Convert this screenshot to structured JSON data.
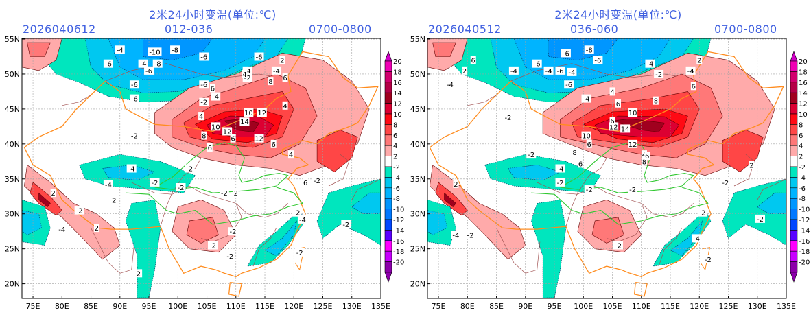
{
  "panels": [
    {
      "title": "2米24小时变温(单位:℃)",
      "init_time": "2026040612",
      "forecast_range": "012-036",
      "valid_hours": "0700-0800",
      "labels": [
        {
          "t": "-10",
          "lon": 96,
          "lat": 53.2
        },
        {
          "t": "-8",
          "lon": 99.5,
          "lat": 53.5
        },
        {
          "t": "-6",
          "lon": 104.5,
          "lat": 52.5
        },
        {
          "t": "-6",
          "lon": 88,
          "lat": 51.5
        },
        {
          "t": "-4",
          "lon": 94,
          "lat": 51.5
        },
        {
          "t": "-8",
          "lon": 96.5,
          "lat": 51.5
        },
        {
          "t": "-6",
          "lon": 95,
          "lat": 50.5
        },
        {
          "t": "-4",
          "lon": 90,
          "lat": 53.5
        },
        {
          "t": "-6",
          "lon": 92.5,
          "lat": 48.5
        },
        {
          "t": "-6",
          "lon": 104.5,
          "lat": 48.5
        },
        {
          "t": "-6",
          "lon": 92.5,
          "lat": 46.5
        },
        {
          "t": "-4",
          "lon": 106.5,
          "lat": 46.8
        },
        {
          "t": "-4",
          "lon": 112,
          "lat": 50.5
        },
        {
          "t": "-6",
          "lon": 114,
          "lat": 52.5
        },
        {
          "t": "-4",
          "lon": 117,
          "lat": 50.5
        },
        {
          "t": "-2",
          "lon": 112,
          "lat": 49.5
        },
        {
          "t": "-2",
          "lon": 104.5,
          "lat": 46
        },
        {
          "t": "6",
          "lon": 106,
          "lat": 48
        },
        {
          "t": "4",
          "lon": 111.5,
          "lat": 50
        },
        {
          "t": "8",
          "lon": 116,
          "lat": 49
        },
        {
          "t": "6",
          "lon": 118.5,
          "lat": 49.5
        },
        {
          "t": "10",
          "lon": 112.2,
          "lat": 44.5
        },
        {
          "t": "12",
          "lon": 114.5,
          "lat": 44.5
        },
        {
          "t": "14",
          "lon": 111.5,
          "lat": 43.2
        },
        {
          "t": "10",
          "lon": 106.5,
          "lat": 42.5
        },
        {
          "t": "12",
          "lon": 108.5,
          "lat": 41.8
        },
        {
          "t": "6",
          "lon": 109.5,
          "lat": 40.8
        },
        {
          "t": "12",
          "lon": 114,
          "lat": 40.8
        },
        {
          "t": "6",
          "lon": 116.5,
          "lat": 40
        },
        {
          "t": "8",
          "lon": 104.5,
          "lat": 41.2
        },
        {
          "t": "6",
          "lon": 105.5,
          "lat": 39.5
        },
        {
          "t": "4",
          "lon": 104,
          "lat": 44
        },
        {
          "t": "4",
          "lon": 118.5,
          "lat": 45.5
        },
        {
          "t": "2",
          "lon": 118,
          "lat": 52
        },
        {
          "t": "4",
          "lon": 119.5,
          "lat": 38.5
        },
        {
          "t": "6",
          "lon": 122,
          "lat": 34.5
        },
        {
          "t": "-2",
          "lon": 92.5,
          "lat": 41.2
        },
        {
          "t": "-4",
          "lon": 92,
          "lat": 36.5
        },
        {
          "t": "-4",
          "lon": 88,
          "lat": 34.2
        },
        {
          "t": "-2",
          "lon": 96,
          "lat": 34.5
        },
        {
          "t": "-2",
          "lon": 100.5,
          "lat": 33.8
        },
        {
          "t": "-2",
          "lon": 102,
          "lat": 36.5
        },
        {
          "t": "-2",
          "lon": 108,
          "lat": 33
        },
        {
          "t": "-2",
          "lon": 109.5,
          "lat": 27.5
        },
        {
          "t": "-2",
          "lon": 106,
          "lat": 25.5
        },
        {
          "t": "-2",
          "lon": 109,
          "lat": 24
        },
        {
          "t": "-4",
          "lon": 80,
          "lat": 27.8
        },
        {
          "t": "-2",
          "lon": 83,
          "lat": 30.5
        },
        {
          "t": "2",
          "lon": 78.5,
          "lat": 33
        },
        {
          "t": "2",
          "lon": 86,
          "lat": 28
        },
        {
          "t": "2",
          "lon": 89,
          "lat": 32
        },
        {
          "t": "-2",
          "lon": 120.5,
          "lat": 30.2
        },
        {
          "t": "-4",
          "lon": 121.5,
          "lat": 29.2
        },
        {
          "t": "-2",
          "lon": 124,
          "lat": 34.8
        },
        {
          "t": "-2",
          "lon": 129,
          "lat": 28.5
        },
        {
          "t": "-2",
          "lon": 121,
          "lat": 24.5
        },
        {
          "t": "2",
          "lon": 110,
          "lat": 33
        },
        {
          "t": "-2",
          "lon": 93,
          "lat": 21.5
        }
      ]
    },
    {
      "title": "2米24小时变温(单位:℃)",
      "init_time": "2026040512",
      "forecast_range": "036-060",
      "valid_hours": "0700-0800",
      "labels": [
        {
          "t": "-6",
          "lon": 97,
          "lat": 53
        },
        {
          "t": "-8",
          "lon": 101,
          "lat": 53.5
        },
        {
          "t": "-6",
          "lon": 102.5,
          "lat": 52
        },
        {
          "t": "-4",
          "lon": 94,
          "lat": 50.5
        },
        {
          "t": "-6",
          "lon": 96,
          "lat": 50.5
        },
        {
          "t": "-4",
          "lon": 98,
          "lat": 50.3
        },
        {
          "t": "-6",
          "lon": 92,
          "lat": 51.5
        },
        {
          "t": "-4",
          "lon": 88,
          "lat": 50.5
        },
        {
          "t": "-6",
          "lon": 97.5,
          "lat": 48.5
        },
        {
          "t": "-4",
          "lon": 100.5,
          "lat": 46.5
        },
        {
          "t": "-4",
          "lon": 111.5,
          "lat": 51.5
        },
        {
          "t": "-4",
          "lon": 118.5,
          "lat": 50.5
        },
        {
          "t": "-2",
          "lon": 113,
          "lat": 50
        },
        {
          "t": "-4",
          "lon": 77,
          "lat": 48.5
        },
        {
          "t": "-2",
          "lon": 87,
          "lat": 43.8
        },
        {
          "t": "6",
          "lon": 81,
          "lat": 52
        },
        {
          "t": "2",
          "lon": 79.5,
          "lat": 50.5
        },
        {
          "t": "4",
          "lon": 105,
          "lat": 47.5
        },
        {
          "t": "6",
          "lon": 106,
          "lat": 45.8
        },
        {
          "t": "8",
          "lon": 112.5,
          "lat": 46.2
        },
        {
          "t": "6",
          "lon": 119,
          "lat": 48.3
        },
        {
          "t": "10",
          "lon": 108.5,
          "lat": 44.5
        },
        {
          "t": "12",
          "lon": 105.2,
          "lat": 42.5
        },
        {
          "t": "14",
          "lon": 107.2,
          "lat": 42.2
        },
        {
          "t": "10",
          "lon": 100.5,
          "lat": 41.2
        },
        {
          "t": "6",
          "lon": 101,
          "lat": 40
        },
        {
          "t": "8",
          "lon": 98.5,
          "lat": 38.8
        },
        {
          "t": "12",
          "lon": 108.5,
          "lat": 40
        },
        {
          "t": "8",
          "lon": 110.5,
          "lat": 37.5
        },
        {
          "t": "6",
          "lon": 99.5,
          "lat": 37.2
        },
        {
          "t": "4",
          "lon": 110.5,
          "lat": 38.5
        },
        {
          "t": "6",
          "lon": 111,
          "lat": 38.3
        },
        {
          "t": "6",
          "lon": 105,
          "lat": 43.3
        },
        {
          "t": "-2",
          "lon": 91,
          "lat": 38.5
        },
        {
          "t": "-4",
          "lon": 96,
          "lat": 36.5
        },
        {
          "t": "-2",
          "lon": 96,
          "lat": 34.5
        },
        {
          "t": "-2",
          "lon": 101,
          "lat": 33.5
        },
        {
          "t": "-2",
          "lon": 108.5,
          "lat": 33.5
        },
        {
          "t": "-2",
          "lon": 106,
          "lat": 25.5
        },
        {
          "t": "-4",
          "lon": 78,
          "lat": 27
        },
        {
          "t": "-2",
          "lon": 80.5,
          "lat": 27
        },
        {
          "t": "2",
          "lon": 78,
          "lat": 34.3
        },
        {
          "t": "-2",
          "lon": 120.5,
          "lat": 30.2
        },
        {
          "t": "-4",
          "lon": 119.5,
          "lat": 26.5
        },
        {
          "t": "-2",
          "lon": 124.5,
          "lat": 34.5
        },
        {
          "t": "-2",
          "lon": 130.5,
          "lat": 29.3
        },
        {
          "t": "-2",
          "lon": 121.5,
          "lat": 23.5
        },
        {
          "t": "2",
          "lon": 129,
          "lat": 37
        },
        {
          "t": "2",
          "lon": 120,
          "lat": 52
        }
      ]
    }
  ],
  "axes": {
    "lon_ticks": [
      "75E",
      "80E",
      "85E",
      "90E",
      "95E",
      "100E",
      "105E",
      "110E",
      "115E",
      "120E",
      "125E",
      "130E",
      "135E"
    ],
    "lon_values": [
      75,
      80,
      85,
      90,
      95,
      100,
      105,
      110,
      115,
      120,
      125,
      130,
      135
    ],
    "lat_ticks": [
      "55N",
      "50N",
      "45N",
      "40N",
      "35N",
      "30N",
      "25N",
      "20N"
    ],
    "lat_values": [
      55,
      50,
      45,
      40,
      35,
      30,
      25,
      20
    ]
  },
  "colorbar": {
    "labels": [
      "20",
      "18",
      "16",
      "14",
      "12",
      "10",
      "8",
      "6",
      "4",
      "2",
      "-2",
      "-4",
      "-6",
      "-8",
      "-10",
      "-12",
      "-14",
      "-16",
      "-18",
      "-20"
    ],
    "colors": [
      "#f000b4",
      "#d2006e",
      "#b40046",
      "#a0001e",
      "#dc0032",
      "#ff0a14",
      "#ff4646",
      "#ff7878",
      "#ffaaaa",
      "#ffffff",
      "#00e6be",
      "#00c8f0",
      "#00b4ff",
      "#0096ff",
      "#0078ff",
      "#0046ff",
      "#5a00ff",
      "#ff00ff",
      "#c800ff",
      "#8c00aa"
    ],
    "top_arrow_color": "#d200c8",
    "bottom_arrow_color": "#8c00aa"
  },
  "colors": {
    "title": "#4060e0",
    "border_province": "#a05050",
    "border_country": "#ff8c1e",
    "river_basin": "#32c832",
    "grid": "#a0a0a0"
  }
}
